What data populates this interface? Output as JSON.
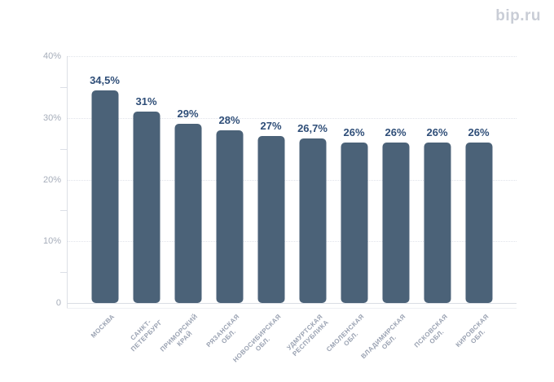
{
  "page": {
    "background": "#ffffff"
  },
  "logo": {
    "text": "bip.ru",
    "color": "#c9cdd6"
  },
  "chart_data": {
    "type": "bar",
    "title": "",
    "xlabel": "",
    "ylabel": "",
    "legend": "none",
    "grid": "dotted-horizontal",
    "ylim": [
      0,
      40
    ],
    "bar_color": "#4b6278",
    "value_label_color": "#2f4e78",
    "axis_label_color": "#a6adba",
    "category_label_color": "#9aa2b2",
    "categories": [
      "МОСКВА",
      "САНКТ-ПЕТЕРБУРГ",
      "ПРИМОРСКИЙ КРАЙ",
      "РЯЗАНСКАЯ ОБЛ.",
      "НОВОСИБИРСКАЯ ОБЛ.",
      "УДМУРТСКАЯ РЕСПУБЛИКА",
      "СМОЛЕНСКАЯ ОБЛ.",
      "ВЛАДИМИРСКАЯ ОБЛ.",
      "ПСКОВСКАЯ ОБЛ.",
      "КИРОВСКАЯ ОБЛ."
    ],
    "category_label_lines": [
      [
        "МОСКВА"
      ],
      [
        "САНКТ-",
        "ПЕТЕРБУРГ"
      ],
      [
        "ПРИМОРСКИЙ",
        "КРАЙ"
      ],
      [
        "РЯЗАНСКАЯ",
        "ОБЛ."
      ],
      [
        "НОВОСИБИРСКАЯ",
        "ОБЛ."
      ],
      [
        "УДМУРТСКАЯ",
        "РЕСПУБЛИКА"
      ],
      [
        "СМОЛЕНСКАЯ",
        "ОБЛ."
      ],
      [
        "ВЛАДИМИРСКАЯ",
        "ОБЛ."
      ],
      [
        "ПСКОВСКАЯ",
        "ОБЛ."
      ],
      [
        "КИРОВСКАЯ",
        "ОБЛ."
      ]
    ],
    "values": [
      34.5,
      31,
      29,
      28,
      27,
      26.7,
      26,
      26,
      26,
      26
    ],
    "value_labels": [
      "34,5%",
      "31%",
      "29%",
      "28%",
      "27%",
      "26,7%",
      "26%",
      "26%",
      "26%",
      "26%"
    ],
    "yticks": [
      {
        "value": 0,
        "label": "0"
      },
      {
        "value": 10,
        "label": "10%"
      },
      {
        "value": 20,
        "label": "20%"
      },
      {
        "value": 30,
        "label": "30%"
      },
      {
        "value": 40,
        "label": "40%"
      }
    ],
    "minor_ticks": [
      5,
      15,
      25,
      35
    ]
  }
}
